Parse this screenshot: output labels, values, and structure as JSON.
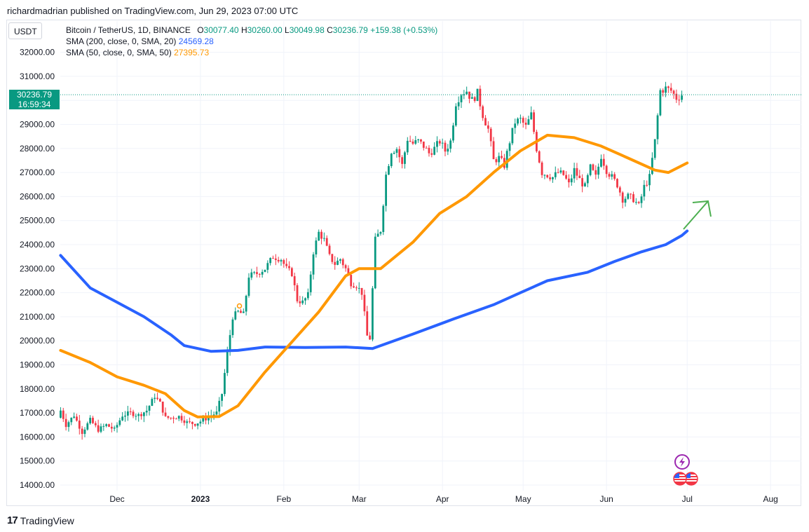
{
  "header": {
    "credit": "richardmadrian published on TradingView.com, Jun 29, 2023 07:00 UTC"
  },
  "toolbar": {
    "currency": "USDT"
  },
  "legend": {
    "symbol": "Bitcoin / TetherUS, 1D, BINANCE",
    "open_label": "O",
    "open": "30077.40",
    "high_label": "H",
    "high": "30260.00",
    "low_label": "L",
    "low": "30049.98",
    "close_label": "C",
    "close": "30236.79",
    "change": "+159.38 (+0.53%)",
    "sma200_label": "SMA (200, close, 0, SMA, 20)",
    "sma200_value": "24569.28",
    "sma50_label": "SMA (50, close, 0, SMA, 50)",
    "sma50_value": "27395.73"
  },
  "price_tag": {
    "price": "30236.79",
    "countdown": "16:59:34"
  },
  "footer": {
    "brand": "TradingView"
  },
  "colors": {
    "up": "#089981",
    "down": "#f23645",
    "sma200": "#2962ff",
    "sma50": "#ff9800",
    "arrow": "#4caf50",
    "grid": "#f0f3fa"
  },
  "chart_data": {
    "type": "line",
    "title": "Bitcoin / TetherUS, 1D, BINANCE",
    "xlabel": "",
    "ylabel": "USDT",
    "ylim": [
      13700,
      32700
    ],
    "y_ticks": [
      "32000.00",
      "31000.00",
      "30000.00",
      "29000.00",
      "28000.00",
      "27000.00",
      "26000.00",
      "25000.00",
      "24000.00",
      "23000.00",
      "22000.00",
      "21000.00",
      "20000.00",
      "19000.00",
      "18000.00",
      "17000.00",
      "16000.00",
      "15000.00",
      "14000.00"
    ],
    "x_ticks": [
      {
        "label": "Dec",
        "day": 0
      },
      {
        "label": "2023",
        "day": 31
      },
      {
        "label": "Feb",
        "day": 62
      },
      {
        "label": "Mar",
        "day": 90
      },
      {
        "label": "Apr",
        "day": 121
      },
      {
        "label": "May",
        "day": 151
      },
      {
        "label": "Jun",
        "day": 182
      },
      {
        "label": "Jul",
        "day": 212
      },
      {
        "label": "Aug",
        "day": 243
      }
    ],
    "x_range_days": [
      -21,
      253
    ],
    "series": [
      {
        "name": "SMA (200, close, 0, SMA, 20)",
        "color": "#2962ff",
        "points": [
          [
            -21,
            23550
          ],
          [
            -10,
            22200
          ],
          [
            0,
            21600
          ],
          [
            10,
            21000
          ],
          [
            20,
            20250
          ],
          [
            25,
            19800
          ],
          [
            35,
            19560
          ],
          [
            45,
            19600
          ],
          [
            55,
            19740
          ],
          [
            70,
            19720
          ],
          [
            85,
            19740
          ],
          [
            95,
            19680
          ],
          [
            110,
            20280
          ],
          [
            125,
            20900
          ],
          [
            140,
            21500
          ],
          [
            150,
            22000
          ],
          [
            160,
            22500
          ],
          [
            175,
            22850
          ],
          [
            185,
            23300
          ],
          [
            195,
            23700
          ],
          [
            204,
            24000
          ],
          [
            210,
            24380
          ],
          [
            212,
            24569
          ]
        ]
      },
      {
        "name": "SMA (50, close, 0, SMA, 50)",
        "color": "#ff9800",
        "points": [
          [
            -21,
            19600
          ],
          [
            -10,
            19100
          ],
          [
            0,
            18500
          ],
          [
            10,
            18150
          ],
          [
            18,
            17800
          ],
          [
            25,
            17100
          ],
          [
            30,
            16830
          ],
          [
            38,
            16850
          ],
          [
            45,
            17300
          ],
          [
            55,
            18700
          ],
          [
            65,
            19950
          ],
          [
            75,
            21200
          ],
          [
            85,
            22700
          ],
          [
            90,
            23000
          ],
          [
            98,
            23000
          ],
          [
            110,
            24100
          ],
          [
            120,
            25300
          ],
          [
            130,
            26000
          ],
          [
            140,
            27000
          ],
          [
            150,
            27900
          ],
          [
            160,
            28550
          ],
          [
            170,
            28450
          ],
          [
            180,
            28100
          ],
          [
            190,
            27600
          ],
          [
            200,
            27100
          ],
          [
            205,
            27000
          ],
          [
            212,
            27396
          ]
        ]
      }
    ],
    "candles_path": [
      [
        -21,
        16800
      ],
      [
        -20,
        17100
      ],
      [
        -18,
        16500
      ],
      [
        -15,
        16900
      ],
      [
        -12,
        16200
      ],
      [
        -9,
        16700
      ],
      [
        -6,
        16300
      ],
      [
        -3,
        16500
      ],
      [
        0,
        16300
      ],
      [
        3,
        16900
      ],
      [
        6,
        17000
      ],
      [
        9,
        16900
      ],
      [
        12,
        17100
      ],
      [
        15,
        17700
      ],
      [
        17,
        17400
      ],
      [
        19,
        16800
      ],
      [
        21,
        16800
      ],
      [
        24,
        16850
      ],
      [
        27,
        16600
      ],
      [
        30,
        16550
      ],
      [
        33,
        16700
      ],
      [
        36,
        16900
      ],
      [
        38,
        17000
      ],
      [
        40,
        17800
      ],
      [
        42,
        19500
      ],
      [
        44,
        21000
      ],
      [
        46,
        21200
      ],
      [
        48,
        21100
      ],
      [
        50,
        22700
      ],
      [
        53,
        22800
      ],
      [
        56,
        23000
      ],
      [
        59,
        23500
      ],
      [
        62,
        23400
      ],
      [
        64,
        23000
      ],
      [
        66,
        22800
      ],
      [
        68,
        21700
      ],
      [
        70,
        21600
      ],
      [
        72,
        21900
      ],
      [
        74,
        23700
      ],
      [
        76,
        24500
      ],
      [
        78,
        24200
      ],
      [
        80,
        23500
      ],
      [
        82,
        23200
      ],
      [
        84,
        23400
      ],
      [
        86,
        23000
      ],
      [
        88,
        22400
      ],
      [
        90,
        22300
      ],
      [
        92,
        22000
      ],
      [
        94,
        20200
      ],
      [
        95,
        20100
      ],
      [
        97,
        24200
      ],
      [
        99,
        24600
      ],
      [
        101,
        26900
      ],
      [
        103,
        27900
      ],
      [
        105,
        28000
      ],
      [
        107,
        27300
      ],
      [
        109,
        28400
      ],
      [
        111,
        28200
      ],
      [
        113,
        28300
      ],
      [
        115,
        28100
      ],
      [
        117,
        27800
      ],
      [
        119,
        28000
      ],
      [
        121,
        28300
      ],
      [
        123,
        27900
      ],
      [
        125,
        28300
      ],
      [
        127,
        29900
      ],
      [
        129,
        30300
      ],
      [
        131,
        30400
      ],
      [
        133,
        30000
      ],
      [
        135,
        30300
      ],
      [
        137,
        29400
      ],
      [
        139,
        28800
      ],
      [
        141,
        27500
      ],
      [
        143,
        27600
      ],
      [
        145,
        27300
      ],
      [
        147,
        28300
      ],
      [
        149,
        29100
      ],
      [
        151,
        29200
      ],
      [
        153,
        28900
      ],
      [
        155,
        29400
      ],
      [
        157,
        28000
      ],
      [
        159,
        27000
      ],
      [
        161,
        26900
      ],
      [
        163,
        26800
      ],
      [
        165,
        27000
      ],
      [
        167,
        26900
      ],
      [
        169,
        26500
      ],
      [
        171,
        27100
      ],
      [
        173,
        26700
      ],
      [
        175,
        26400
      ],
      [
        177,
        27200
      ],
      [
        179,
        26800
      ],
      [
        181,
        27700
      ],
      [
        183,
        27100
      ],
      [
        185,
        26800
      ],
      [
        187,
        26500
      ],
      [
        189,
        25900
      ],
      [
        191,
        26000
      ],
      [
        193,
        25900
      ],
      [
        195,
        25600
      ],
      [
        197,
        26400
      ],
      [
        199,
        26800
      ],
      [
        201,
        28300
      ],
      [
        203,
        30400
      ],
      [
        205,
        30500
      ],
      [
        207,
        30400
      ],
      [
        209,
        30100
      ],
      [
        211,
        30236
      ]
    ],
    "annotation": "arrow pointing up-right from the 200-day SMA"
  }
}
